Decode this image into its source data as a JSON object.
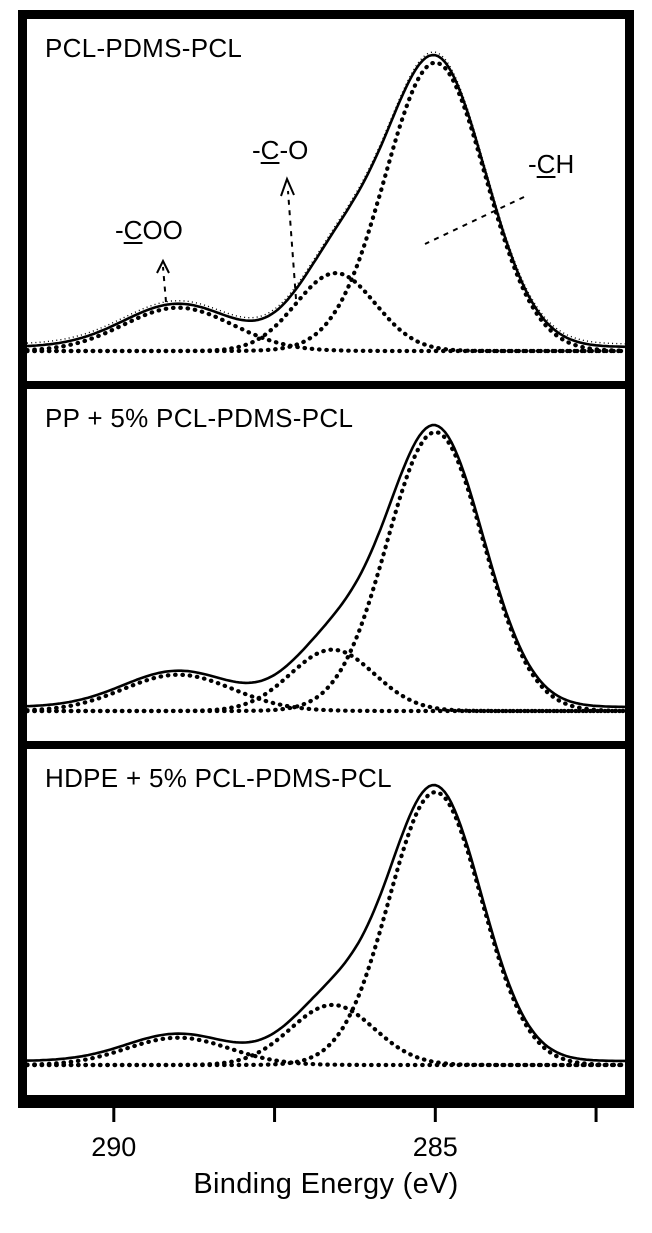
{
  "chart_data": {
    "type": "line",
    "description": "XPS C1s spectra, three stacked panels; solid envelope with dotted fitted component peaks",
    "xlabel": "Binding Energy (eV)",
    "x_axis": {
      "unit": "eV",
      "range_high_to_low": [
        291.35,
        282.05
      ],
      "direction": "decreasing left to right",
      "ticks": [
        {
          "value": 290,
          "label": "290"
        },
        {
          "value": 287.5,
          "label": ""
        },
        {
          "value": 285,
          "label": "285"
        },
        {
          "value": 282.5,
          "label": ""
        }
      ]
    },
    "y_axis": {
      "label": "",
      "note": "intensity, arbitrary units, no scale shown"
    },
    "colors": {
      "ink": "#000000",
      "background": "#ffffff"
    },
    "panels": [
      {
        "title": "PCL-PDMS-PCL",
        "shows_raw_data_dotted": true,
        "peaks": [
          {
            "assignment": "-CH",
            "center_ev": 285.0,
            "rel_height": 1.0,
            "sigma_ev": 0.78
          },
          {
            "assignment": "-C-O",
            "center_ev": 286.55,
            "rel_height": 0.27,
            "sigma_ev": 0.62
          },
          {
            "assignment": "-COO",
            "center_ev": 289.0,
            "rel_height": 0.15,
            "sigma_ev": 0.85
          }
        ],
        "annotations": [
          {
            "id": "coo",
            "pre": "-",
            "underline": "C",
            "post": "OO",
            "points_to_ev": 289.2
          },
          {
            "id": "co",
            "pre": "-",
            "underline": "C",
            "post": "-O",
            "points_to_ev": 287.3
          },
          {
            "id": "ch",
            "pre": "-",
            "underline": "C",
            "post": "H",
            "points_to_ev": 285.6
          }
        ]
      },
      {
        "title": "PP + 5% PCL-PDMS-PCL",
        "shows_raw_data_dotted": false,
        "peaks": [
          {
            "assignment": "-CH",
            "center_ev": 285.0,
            "rel_height": 1.0,
            "sigma_ev": 0.75
          },
          {
            "assignment": "-C-O",
            "center_ev": 286.6,
            "rel_height": 0.22,
            "sigma_ev": 0.65
          },
          {
            "assignment": "-COO",
            "center_ev": 289.0,
            "rel_height": 0.13,
            "sigma_ev": 0.85
          }
        ],
        "annotations": []
      },
      {
        "title": "HDPE + 5% PCL-PDMS-PCL",
        "shows_raw_data_dotted": false,
        "peaks": [
          {
            "assignment": "-CH",
            "center_ev": 285.0,
            "rel_height": 1.0,
            "sigma_ev": 0.72
          },
          {
            "assignment": "-C-O",
            "center_ev": 286.6,
            "rel_height": 0.22,
            "sigma_ev": 0.65
          },
          {
            "assignment": "-COO",
            "center_ev": 289.0,
            "rel_height": 0.1,
            "sigma_ev": 0.8
          }
        ],
        "annotations": []
      }
    ]
  }
}
